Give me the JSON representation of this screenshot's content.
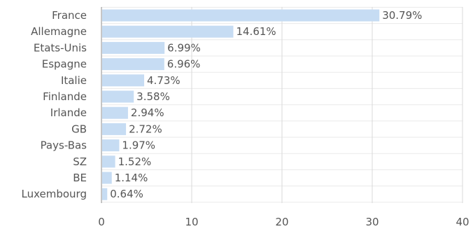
{
  "chart_data": {
    "type": "bar",
    "orientation": "horizontal",
    "categories": [
      "France",
      "Allemagne",
      "Etats-Unis",
      "Espagne",
      "Italie",
      "Finlande",
      "Irlande",
      "GB",
      "Pays-Bas",
      "SZ",
      "BE",
      "Luxembourg"
    ],
    "values": [
      30.79,
      14.61,
      6.99,
      6.96,
      4.73,
      3.58,
      2.94,
      2.72,
      1.97,
      1.52,
      1.14,
      0.64
    ],
    "value_labels": [
      "30.79%",
      "14.61%",
      "6.99%",
      "6.96%",
      "4.73%",
      "3.58%",
      "2.94%",
      "2.72%",
      "1.97%",
      "1.52%",
      "1.14%",
      "0.64%"
    ],
    "xlim": [
      0,
      40
    ],
    "x_ticks": [
      0,
      10,
      20,
      30,
      40
    ],
    "x_tick_labels": [
      "0",
      "10",
      "20",
      "30",
      "40"
    ],
    "grid": true,
    "bar_color": "#c6dcf3",
    "title": "",
    "xlabel": "",
    "ylabel": ""
  }
}
